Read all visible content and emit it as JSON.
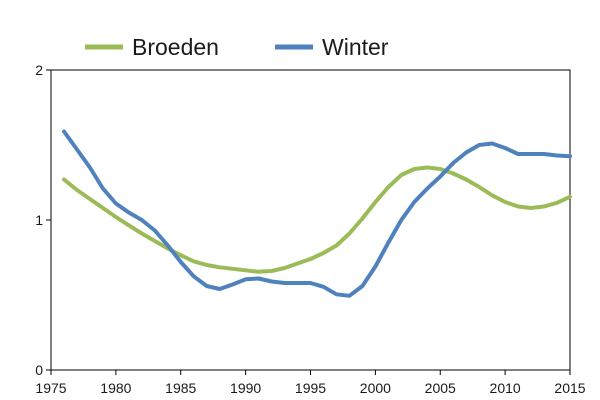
{
  "chart_data": {
    "type": "line",
    "title": "",
    "xlabel": "",
    "ylabel": "",
    "xlim": [
      1975,
      2015
    ],
    "ylim": [
      0,
      2
    ],
    "xticks": [
      "1975",
      "1980",
      "1985",
      "1990",
      "1995",
      "2000",
      "2005",
      "2010",
      "2015"
    ],
    "yticks": [
      "0",
      "1",
      "2"
    ],
    "grid": false,
    "legend_position": "top",
    "series": [
      {
        "name": "Broeden",
        "color": "#9bbb59",
        "x": [
          1976,
          1977,
          1978,
          1979,
          1980,
          1981,
          1982,
          1983,
          1984,
          1985,
          1986,
          1987,
          1988,
          1989,
          1990,
          1991,
          1992,
          1993,
          1994,
          1995,
          1996,
          1997,
          1998,
          1999,
          2000,
          2001,
          2002,
          2003,
          2004,
          2005,
          2006,
          2007,
          2008,
          2009,
          2010,
          2011,
          2012,
          2013,
          2014,
          2015
        ],
        "values": [
          1.27,
          1.2,
          1.14,
          1.08,
          1.02,
          0.965,
          0.91,
          0.86,
          0.81,
          0.765,
          0.725,
          0.7,
          0.685,
          0.675,
          0.665,
          0.655,
          0.66,
          0.68,
          0.71,
          0.74,
          0.78,
          0.83,
          0.91,
          1.01,
          1.12,
          1.22,
          1.3,
          1.34,
          1.35,
          1.34,
          1.31,
          1.27,
          1.22,
          1.165,
          1.12,
          1.09,
          1.08,
          1.09,
          1.115,
          1.155
        ]
      },
      {
        "name": "Winter",
        "color": "#4f81bd",
        "x": [
          1976,
          1977,
          1978,
          1979,
          1980,
          1981,
          1982,
          1983,
          1984,
          1985,
          1986,
          1987,
          1988,
          1989,
          1990,
          1991,
          1992,
          1993,
          1994,
          1995,
          1996,
          1997,
          1998,
          1999,
          2000,
          2001,
          2002,
          2003,
          2004,
          2005,
          2006,
          2007,
          2008,
          2009,
          2010,
          2011,
          2012,
          2013,
          2014,
          2015
        ],
        "values": [
          1.59,
          1.47,
          1.35,
          1.21,
          1.11,
          1.05,
          1.0,
          0.93,
          0.83,
          0.72,
          0.625,
          0.56,
          0.54,
          0.57,
          0.605,
          0.61,
          0.59,
          0.58,
          0.58,
          0.58,
          0.555,
          0.505,
          0.495,
          0.56,
          0.69,
          0.85,
          1.0,
          1.12,
          1.21,
          1.29,
          1.38,
          1.45,
          1.5,
          1.51,
          1.48,
          1.44,
          1.44,
          1.44,
          1.43,
          1.425
        ]
      }
    ]
  }
}
